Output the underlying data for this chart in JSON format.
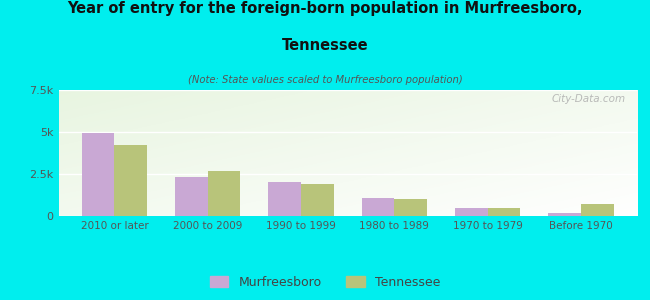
{
  "title_line1": "Year of entry for the foreign-born population in Murfreesboro,",
  "title_line2": "Tennessee",
  "subtitle": "(Note: State values scaled to Murfreesboro population)",
  "categories": [
    "2010 or later",
    "2000 to 2009",
    "1990 to 1999",
    "1980 to 1989",
    "1970 to 1979",
    "Before 1970"
  ],
  "murfreesboro_values": [
    4950,
    2300,
    2050,
    1050,
    450,
    200
  ],
  "tennessee_values": [
    4200,
    2700,
    1900,
    1000,
    500,
    700
  ],
  "murfreesboro_color": "#c9a8d4",
  "tennessee_color": "#b8c47a",
  "ylim": [
    0,
    7500
  ],
  "yticks": [
    0,
    2500,
    5000,
    7500
  ],
  "ytick_labels": [
    "0",
    "2.5k",
    "5k",
    "7.5k"
  ],
  "background_color": "#00eeee",
  "plot_bg_color": "#e8f5e0",
  "watermark": "City-Data.com",
  "legend_murfreesboro": "Murfreesboro",
  "legend_tennessee": "Tennessee",
  "bar_width": 0.35
}
